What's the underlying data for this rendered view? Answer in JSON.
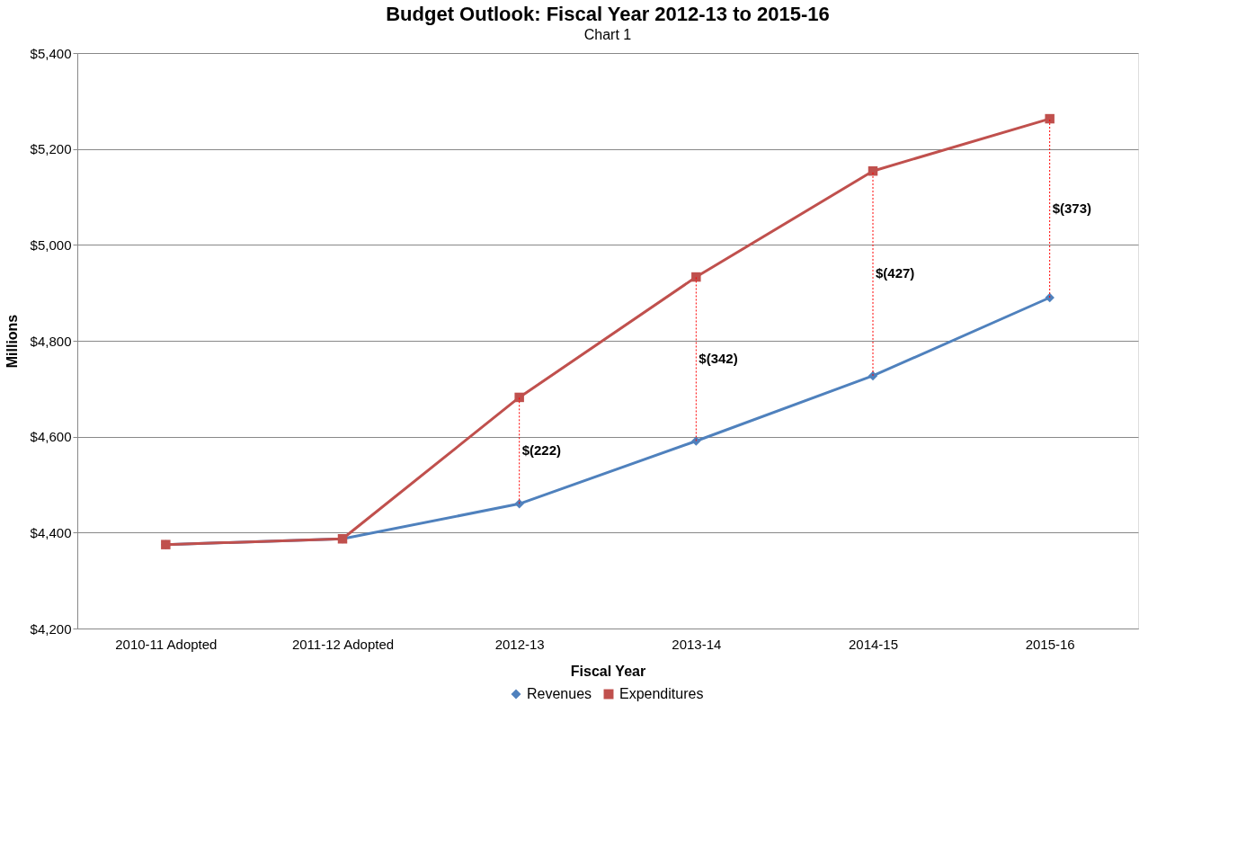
{
  "chart_data": {
    "type": "line",
    "title": "Budget Outlook:  Fiscal Year 2012-13 to 2015-16",
    "xlabel": "Fiscal Year",
    "ylabel": "Millions",
    "categories": [
      "2010-11 Adopted",
      "2011-12 Adopted",
      "2012-13",
      "2013-14",
      "2014-15",
      "2015-16"
    ],
    "series": [
      {
        "name": "Revenues",
        "color": "#4f81bd",
        "marker": "diamond",
        "values": [
          4375,
          4387,
          4460,
          4591,
          4727,
          4890
        ],
        "errors": [
          null,
          null,
          [
            4460,
            4682
          ],
          [
            4591,
            4933
          ],
          [
            4727,
            5154
          ],
          [
            4890,
            5263
          ]
        ]
      },
      {
        "name": "Expenditures",
        "color": "#c0504d",
        "marker": "square",
        "values": [
          4375,
          4387,
          4682,
          4933,
          5154,
          5263
        ]
      }
    ],
    "ylim": [
      4200,
      5400
    ],
    "yticks": [
      {
        "value": 4200,
        "label": "$4,200"
      },
      {
        "value": 4400,
        "label": "$4,400"
      },
      {
        "value": 4600,
        "label": "$4,600"
      },
      {
        "value": 4800,
        "label": "$4,800"
      },
      {
        "value": 5000,
        "label": "$5,000"
      },
      {
        "value": 5200,
        "label": "$5,200"
      },
      {
        "value": 5400,
        "label": "$5,400"
      }
    ],
    "grid": "y",
    "legend": "bottom",
    "annotations": [
      "Chart 1",
      {
        "text": "$(222)",
        "x": "2012-13",
        "y": 4571
      },
      {
        "text": "$(342)",
        "x": "2013-14",
        "y": 4762
      },
      {
        "text": "$(427)",
        "x": "2014-15",
        "y": 4940
      },
      {
        "text": "$(373)",
        "x": "2015-16",
        "y": 5076
      }
    ]
  }
}
